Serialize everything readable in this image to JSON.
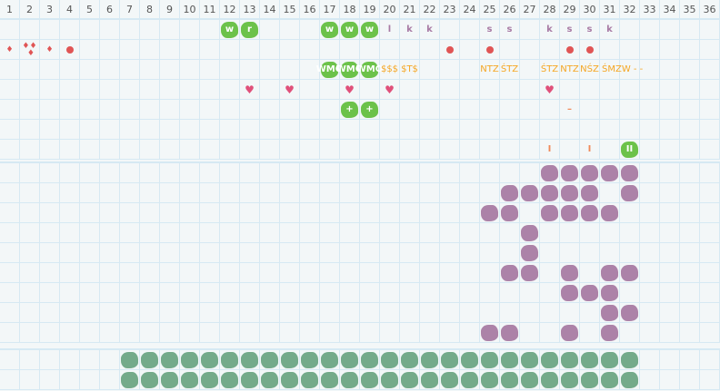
{
  "columns": [
    "1",
    "2",
    "3",
    "4",
    "5",
    "6",
    "7",
    "8",
    "9",
    "10",
    "11",
    "12",
    "13",
    "14",
    "15",
    "16",
    "17",
    "18",
    "19",
    "20",
    "21",
    "22",
    "23",
    "24",
    "25",
    "26",
    "27",
    "28",
    "29",
    "30",
    "31",
    "32",
    "33",
    "34",
    "35",
    "36"
  ],
  "colors": {
    "green": "#6cc24a",
    "purple": "#ac82a8",
    "teal": "#74aa8a",
    "orange": "#f5a623",
    "red": "#e05555",
    "heart": "#e0507a"
  },
  "sections": [
    {
      "name": "top-board",
      "rows": [
        {
          "12": {
            "t": "green",
            "v": "w"
          },
          "13": {
            "t": "green",
            "v": "r"
          },
          "17": {
            "t": "green",
            "v": "w"
          },
          "18": {
            "t": "green",
            "v": "w"
          },
          "19": {
            "t": "green",
            "v": "w"
          },
          "20": {
            "t": "ltr",
            "v": "l"
          },
          "21": {
            "t": "ltr",
            "v": "k"
          },
          "22": {
            "t": "ltr",
            "v": "k"
          },
          "25": {
            "t": "ltr",
            "v": "s"
          },
          "26": {
            "t": "ltr",
            "v": "s"
          },
          "28": {
            "t": "ltr",
            "v": "k"
          },
          "29": {
            "t": "ltr",
            "v": "s"
          },
          "30": {
            "t": "ltr",
            "v": "s"
          },
          "31": {
            "t": "ltr",
            "v": "k"
          }
        },
        {
          "1": {
            "t": "drop",
            "v": "drop-icon"
          },
          "2": {
            "t": "drops",
            "v": "drops-icon"
          },
          "3": {
            "t": "drop",
            "v": "drop-icon"
          },
          "4": {
            "t": "dot",
            "v": "dot-icon"
          },
          "23": {
            "t": "dot",
            "v": "dot-icon"
          },
          "25": {
            "t": "dot",
            "v": "dot-icon"
          },
          "29": {
            "t": "dot",
            "v": "dot-icon"
          },
          "30": {
            "t": "dot",
            "v": "dot-icon"
          }
        },
        {
          "17": {
            "t": "green",
            "v": "WMO"
          },
          "18": {
            "t": "green",
            "v": "WMO"
          },
          "19": {
            "t": "green",
            "v": "WMO"
          },
          "20": {
            "t": "org",
            "v": "$$$"
          },
          "21": {
            "t": "org",
            "v": "$T$"
          },
          "25": {
            "t": "org",
            "v": "NTZ"
          },
          "26": {
            "t": "org",
            "v": "ŚTZ"
          },
          "28": {
            "t": "org",
            "v": "ŚTZ"
          },
          "29": {
            "t": "org",
            "v": "NTZ"
          },
          "30": {
            "t": "org",
            "v": "NŚZ"
          },
          "31": {
            "t": "org",
            "v": "ŚMZW - -"
          }
        },
        {
          "13": {
            "t": "heart",
            "v": "heart-icon"
          },
          "15": {
            "t": "heart",
            "v": "heart-icon"
          },
          "18": {
            "t": "heart",
            "v": "heart-icon"
          },
          "20": {
            "t": "heart",
            "v": "heart-icon"
          },
          "28": {
            "t": "heart",
            "v": "heart-icon"
          }
        },
        {
          "18": {
            "t": "green",
            "v": "+"
          },
          "19": {
            "t": "green",
            "v": "+"
          },
          "29": {
            "t": "dash",
            "v": "–"
          }
        },
        {},
        {
          "28": {
            "t": "dash",
            "v": "I"
          },
          "30": {
            "t": "dash",
            "v": "I"
          },
          "32": {
            "t": "green",
            "v": "II"
          }
        }
      ]
    },
    {
      "name": "purple-board",
      "rows": [
        {
          "28": {
            "t": "purple"
          },
          "29": {
            "t": "purple"
          },
          "30": {
            "t": "purple"
          },
          "31": {
            "t": "purple"
          },
          "32": {
            "t": "purple"
          }
        },
        {
          "26": {
            "t": "purple"
          },
          "27": {
            "t": "purple"
          },
          "28": {
            "t": "purple"
          },
          "29": {
            "t": "purple"
          },
          "30": {
            "t": "purple"
          },
          "32": {
            "t": "purple"
          }
        },
        {
          "25": {
            "t": "purple"
          },
          "26": {
            "t": "purple"
          },
          "28": {
            "t": "purple"
          },
          "29": {
            "t": "purple"
          },
          "30": {
            "t": "purple"
          },
          "31": {
            "t": "purple"
          }
        },
        {
          "27": {
            "t": "purple"
          }
        },
        {
          "27": {
            "t": "purple"
          }
        },
        {
          "26": {
            "t": "purple"
          },
          "27": {
            "t": "purple"
          },
          "29": {
            "t": "purple"
          },
          "31": {
            "t": "purple"
          },
          "32": {
            "t": "purple"
          }
        },
        {
          "29": {
            "t": "purple"
          },
          "30": {
            "t": "purple"
          },
          "31": {
            "t": "purple"
          }
        },
        {
          "31": {
            "t": "purple"
          },
          "32": {
            "t": "purple"
          }
        },
        {
          "25": {
            "t": "purple"
          },
          "26": {
            "t": "purple"
          },
          "29": {
            "t": "purple"
          },
          "31": {
            "t": "purple"
          }
        }
      ]
    },
    {
      "name": "teal-board",
      "rows": [
        {
          "fill": "teal",
          "from": 7,
          "to": 32
        },
        {
          "fill": "teal",
          "from": 7,
          "to": 32
        }
      ]
    }
  ]
}
